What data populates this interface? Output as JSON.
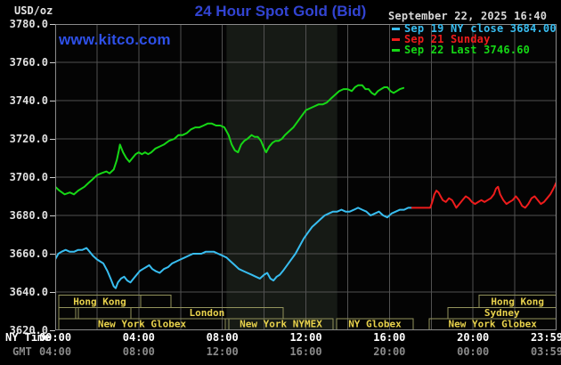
{
  "header": {
    "unit_label": "USD/oz",
    "title": "24 Hour Spot Gold (Bid)",
    "datetime": "September 22, 2025 16:40",
    "watermark": "www.kitco.com"
  },
  "legend": [
    {
      "label": "Sep 19 NY close 3684.00",
      "color": "#38bdf0"
    },
    {
      "label": "Sep 21 Sunday",
      "color": "#ee1c1c"
    },
    {
      "label": "Sep 22 Last 3746.60",
      "color": "#16d716"
    }
  ],
  "axes": {
    "y_ticks": [
      "3780.0",
      "3760.0",
      "3740.0",
      "3720.0",
      "3700.0",
      "3680.0",
      "3660.0",
      "3640.0",
      "3620.0"
    ],
    "x_tick_hours": [
      0,
      4,
      8,
      12,
      16,
      20,
      23.983
    ],
    "rows": [
      {
        "label": "NY Time",
        "ticks": [
          "00:00",
          "04:00",
          "08:00",
          "12:00",
          "16:00",
          "20:00",
          "23:59"
        ]
      },
      {
        "label": "GMT",
        "ticks": [
          "04:00",
          "08:00",
          "12:00",
          "16:00",
          "20:00",
          "00:00",
          "03:59"
        ]
      }
    ]
  },
  "sessions": {
    "rows": [
      {
        "segments": [
          {
            "start_hour": 0.17,
            "end_hour": 4.09,
            "label": "Hong Kong"
          },
          {
            "start_hour": 4.09,
            "end_hour": 5.54,
            "label": ""
          },
          {
            "start_hour": 20.29,
            "end_hour": 24.0,
            "label": "Hong Kong"
          }
        ]
      },
      {
        "segments": [
          {
            "start_hour": 0.17,
            "end_hour": 0.98,
            "label": ""
          },
          {
            "start_hour": 1.11,
            "end_hour": 3.62,
            "label": ""
          },
          {
            "start_hour": 3.62,
            "end_hour": 10.91,
            "label": "London"
          },
          {
            "start_hour": 18.8,
            "end_hour": 24.0,
            "label": "Sydney"
          }
        ]
      },
      {
        "segments": [
          {
            "start_hour": 0.17,
            "end_hour": 8.14,
            "label": "New York Globex"
          },
          {
            "start_hour": 8.31,
            "end_hour": 13.3,
            "label": "New York NYMEX"
          },
          {
            "start_hour": 13.47,
            "end_hour": 17.14,
            "label": "NY Globex"
          },
          {
            "start_hour": 17.9,
            "end_hour": 24.0,
            "label": "New York Globex"
          }
        ]
      }
    ]
  },
  "colors": {
    "title": "#3244d2",
    "watermark": "#2e50e8",
    "band": "#161a15",
    "grid": "#515151",
    "border": "#8a8a8a",
    "session_border": "#93935c",
    "session_text": "#e8d24c",
    "ny_time_text": "#ffffff",
    "gmt_text": "#8a8a8a"
  },
  "chart_data": {
    "type": "line",
    "title": "24 Hour Spot Gold (Bid)",
    "xlabel": "NY Time",
    "ylabel": "USD/oz",
    "x_range_hours": [
      0,
      24
    ],
    "ylim": [
      3620,
      3780
    ],
    "y_tick_step": 20,
    "grid": {
      "x_step_hours": 2,
      "y_step": 20
    },
    "legend_position": "top-right",
    "shaded_band_hours": [
      8.2,
      13.5
    ],
    "series": [
      {
        "name": "Sep 19 NY close 3684.00",
        "color": "#38bdf0",
        "points": [
          [
            0,
            3657
          ],
          [
            0.15,
            3660
          ],
          [
            0.3,
            3661
          ],
          [
            0.5,
            3662
          ],
          [
            0.7,
            3661
          ],
          [
            0.9,
            3661
          ],
          [
            1.1,
            3662
          ],
          [
            1.3,
            3662
          ],
          [
            1.5,
            3663
          ],
          [
            1.65,
            3661
          ],
          [
            1.8,
            3659
          ],
          [
            2.0,
            3657
          ],
          [
            2.15,
            3656
          ],
          [
            2.3,
            3655
          ],
          [
            2.5,
            3651
          ],
          [
            2.65,
            3647
          ],
          [
            2.8,
            3643
          ],
          [
            2.9,
            3642
          ],
          [
            3.0,
            3645
          ],
          [
            3.15,
            3647
          ],
          [
            3.3,
            3648
          ],
          [
            3.45,
            3646
          ],
          [
            3.6,
            3645
          ],
          [
            3.75,
            3647
          ],
          [
            3.9,
            3649
          ],
          [
            4.05,
            3651
          ],
          [
            4.2,
            3652
          ],
          [
            4.35,
            3653
          ],
          [
            4.5,
            3654
          ],
          [
            4.65,
            3652
          ],
          [
            4.8,
            3651
          ],
          [
            5.0,
            3650
          ],
          [
            5.2,
            3652
          ],
          [
            5.4,
            3653
          ],
          [
            5.6,
            3655
          ],
          [
            5.8,
            3656
          ],
          [
            6.0,
            3657
          ],
          [
            6.2,
            3658
          ],
          [
            6.4,
            3659
          ],
          [
            6.6,
            3660
          ],
          [
            6.8,
            3660
          ],
          [
            7.0,
            3660
          ],
          [
            7.2,
            3661
          ],
          [
            7.4,
            3661
          ],
          [
            7.6,
            3661
          ],
          [
            7.8,
            3660
          ],
          [
            8.0,
            3659
          ],
          [
            8.2,
            3658
          ],
          [
            8.4,
            3656
          ],
          [
            8.6,
            3654
          ],
          [
            8.8,
            3652
          ],
          [
            9.0,
            3651
          ],
          [
            9.2,
            3650
          ],
          [
            9.4,
            3649
          ],
          [
            9.6,
            3648
          ],
          [
            9.8,
            3647
          ],
          [
            10.0,
            3649
          ],
          [
            10.15,
            3650
          ],
          [
            10.3,
            3647
          ],
          [
            10.45,
            3646
          ],
          [
            10.6,
            3648
          ],
          [
            10.75,
            3649
          ],
          [
            10.9,
            3651
          ],
          [
            11.1,
            3654
          ],
          [
            11.3,
            3657
          ],
          [
            11.5,
            3660
          ],
          [
            11.7,
            3664
          ],
          [
            11.9,
            3668
          ],
          [
            12.1,
            3671
          ],
          [
            12.3,
            3674
          ],
          [
            12.5,
            3676
          ],
          [
            12.7,
            3678
          ],
          [
            12.9,
            3680
          ],
          [
            13.1,
            3681
          ],
          [
            13.3,
            3682
          ],
          [
            13.5,
            3682
          ],
          [
            13.7,
            3683
          ],
          [
            13.9,
            3682
          ],
          [
            14.1,
            3682
          ],
          [
            14.3,
            3683
          ],
          [
            14.5,
            3684
          ],
          [
            14.7,
            3683
          ],
          [
            14.9,
            3682
          ],
          [
            15.1,
            3680
          ],
          [
            15.3,
            3681
          ],
          [
            15.5,
            3682
          ],
          [
            15.7,
            3680
          ],
          [
            15.9,
            3679
          ],
          [
            16.1,
            3681
          ],
          [
            16.3,
            3682
          ],
          [
            16.5,
            3683
          ],
          [
            16.7,
            3683
          ],
          [
            16.9,
            3684
          ],
          [
            17.08,
            3684
          ]
        ]
      },
      {
        "name": "Sep 21 Sunday",
        "color": "#ee1c1c",
        "points": [
          [
            17.08,
            3684
          ],
          [
            17.5,
            3684
          ],
          [
            17.95,
            3684
          ],
          [
            18.05,
            3687
          ],
          [
            18.15,
            3691
          ],
          [
            18.25,
            3693
          ],
          [
            18.35,
            3692
          ],
          [
            18.45,
            3690
          ],
          [
            18.55,
            3688
          ],
          [
            18.7,
            3687
          ],
          [
            18.85,
            3689
          ],
          [
            19.0,
            3688
          ],
          [
            19.1,
            3686
          ],
          [
            19.2,
            3684
          ],
          [
            19.35,
            3686
          ],
          [
            19.5,
            3688
          ],
          [
            19.65,
            3690
          ],
          [
            19.8,
            3689
          ],
          [
            19.95,
            3687
          ],
          [
            20.1,
            3686
          ],
          [
            20.25,
            3687
          ],
          [
            20.4,
            3688
          ],
          [
            20.55,
            3687
          ],
          [
            20.7,
            3688
          ],
          [
            20.85,
            3689
          ],
          [
            21.0,
            3691
          ],
          [
            21.1,
            3694
          ],
          [
            21.2,
            3695
          ],
          [
            21.3,
            3691
          ],
          [
            21.45,
            3688
          ],
          [
            21.6,
            3686
          ],
          [
            21.75,
            3687
          ],
          [
            21.9,
            3688
          ],
          [
            22.05,
            3690
          ],
          [
            22.2,
            3688
          ],
          [
            22.35,
            3685
          ],
          [
            22.5,
            3684
          ],
          [
            22.65,
            3686
          ],
          [
            22.8,
            3689
          ],
          [
            22.95,
            3690
          ],
          [
            23.1,
            3688
          ],
          [
            23.25,
            3686
          ],
          [
            23.4,
            3687
          ],
          [
            23.55,
            3689
          ],
          [
            23.7,
            3691
          ],
          [
            23.85,
            3694
          ],
          [
            23.98,
            3697
          ]
        ]
      },
      {
        "name": "Sep 22 Last 3746.60",
        "color": "#16d716",
        "points": [
          [
            0,
            3695
          ],
          [
            0.2,
            3693
          ],
          [
            0.45,
            3691
          ],
          [
            0.7,
            3692
          ],
          [
            0.9,
            3691
          ],
          [
            1.1,
            3693
          ],
          [
            1.4,
            3695
          ],
          [
            1.6,
            3697
          ],
          [
            1.8,
            3699
          ],
          [
            2.0,
            3701
          ],
          [
            2.2,
            3702
          ],
          [
            2.45,
            3703
          ],
          [
            2.6,
            3702
          ],
          [
            2.8,
            3704
          ],
          [
            2.95,
            3709
          ],
          [
            3.05,
            3714
          ],
          [
            3.1,
            3717
          ],
          [
            3.25,
            3713
          ],
          [
            3.4,
            3710
          ],
          [
            3.55,
            3708
          ],
          [
            3.7,
            3710
          ],
          [
            3.85,
            3712
          ],
          [
            4.0,
            3713
          ],
          [
            4.15,
            3712
          ],
          [
            4.3,
            3713
          ],
          [
            4.45,
            3712
          ],
          [
            4.6,
            3713
          ],
          [
            4.8,
            3715
          ],
          [
            5.0,
            3716
          ],
          [
            5.2,
            3717
          ],
          [
            5.45,
            3719
          ],
          [
            5.7,
            3720
          ],
          [
            5.9,
            3722
          ],
          [
            6.1,
            3722
          ],
          [
            6.3,
            3723
          ],
          [
            6.5,
            3725
          ],
          [
            6.7,
            3726
          ],
          [
            6.9,
            3726
          ],
          [
            7.1,
            3727
          ],
          [
            7.3,
            3728
          ],
          [
            7.5,
            3728
          ],
          [
            7.7,
            3727
          ],
          [
            7.9,
            3727
          ],
          [
            8.1,
            3726
          ],
          [
            8.3,
            3722
          ],
          [
            8.45,
            3717
          ],
          [
            8.6,
            3714
          ],
          [
            8.75,
            3713
          ],
          [
            8.9,
            3717
          ],
          [
            9.05,
            3719
          ],
          [
            9.2,
            3720
          ],
          [
            9.4,
            3722
          ],
          [
            9.55,
            3721
          ],
          [
            9.7,
            3721
          ],
          [
            9.85,
            3719
          ],
          [
            10.0,
            3715
          ],
          [
            10.1,
            3713
          ],
          [
            10.25,
            3716
          ],
          [
            10.4,
            3718
          ],
          [
            10.55,
            3719
          ],
          [
            10.7,
            3719
          ],
          [
            10.85,
            3720
          ],
          [
            11.0,
            3722
          ],
          [
            11.2,
            3724
          ],
          [
            11.4,
            3726
          ],
          [
            11.6,
            3729
          ],
          [
            11.8,
            3732
          ],
          [
            12.0,
            3735
          ],
          [
            12.2,
            3736
          ],
          [
            12.4,
            3737
          ],
          [
            12.6,
            3738
          ],
          [
            12.8,
            3738
          ],
          [
            13.0,
            3739
          ],
          [
            13.2,
            3741
          ],
          [
            13.4,
            3743
          ],
          [
            13.6,
            3745
          ],
          [
            13.8,
            3746
          ],
          [
            14.0,
            3746
          ],
          [
            14.2,
            3745
          ],
          [
            14.35,
            3747
          ],
          [
            14.5,
            3748
          ],
          [
            14.7,
            3748
          ],
          [
            14.85,
            3746
          ],
          [
            15.0,
            3746
          ],
          [
            15.15,
            3744
          ],
          [
            15.3,
            3743
          ],
          [
            15.45,
            3745
          ],
          [
            15.6,
            3746
          ],
          [
            15.75,
            3747
          ],
          [
            15.9,
            3747
          ],
          [
            16.05,
            3745
          ],
          [
            16.2,
            3744
          ],
          [
            16.35,
            3745
          ],
          [
            16.5,
            3746
          ],
          [
            16.67,
            3746.6
          ]
        ]
      }
    ]
  }
}
